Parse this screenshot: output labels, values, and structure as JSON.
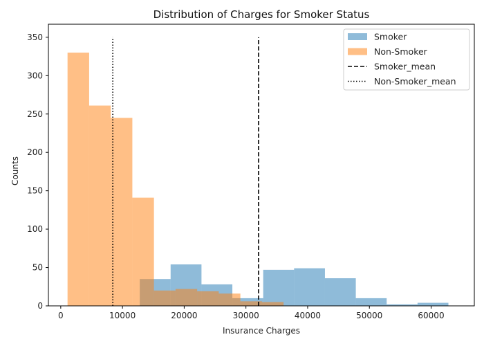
{
  "chart_data": {
    "type": "histogram",
    "title": "Distribution of Charges for Smoker Status",
    "xlabel": "Insurance Charges",
    "ylabel": "Counts",
    "xlim": [
      -2000,
      67000
    ],
    "ylim": [
      0,
      367
    ],
    "xticks": [
      0,
      10000,
      20000,
      30000,
      40000,
      50000,
      60000
    ],
    "yticks": [
      0,
      50,
      100,
      150,
      200,
      250,
      300,
      350
    ],
    "legend_position": "top-right",
    "series": [
      {
        "name": "Smoker",
        "color": "#1f77b4",
        "opacity": 0.5,
        "bins": [
          {
            "x0": 12800,
            "x1": 17800,
            "count": 35
          },
          {
            "x0": 17800,
            "x1": 22800,
            "count": 54
          },
          {
            "x0": 22800,
            "x1": 27800,
            "count": 28
          },
          {
            "x0": 27800,
            "x1": 32800,
            "count": 10
          },
          {
            "x0": 32800,
            "x1": 37800,
            "count": 47
          },
          {
            "x0": 37800,
            "x1": 42800,
            "count": 49
          },
          {
            "x0": 42800,
            "x1": 47800,
            "count": 36
          },
          {
            "x0": 47800,
            "x1": 52800,
            "count": 10
          },
          {
            "x0": 52800,
            "x1": 57800,
            "count": 2
          },
          {
            "x0": 57800,
            "x1": 62800,
            "count": 4
          }
        ]
      },
      {
        "name": "Non-Smoker",
        "color": "#ff7f0e",
        "opacity": 0.5,
        "bins": [
          {
            "x0": 1100,
            "x1": 4600,
            "count": 330
          },
          {
            "x0": 4600,
            "x1": 8100,
            "count": 261
          },
          {
            "x0": 8100,
            "x1": 11600,
            "count": 245
          },
          {
            "x0": 11600,
            "x1": 15100,
            "count": 141
          },
          {
            "x0": 15100,
            "x1": 18600,
            "count": 20
          },
          {
            "x0": 18600,
            "x1": 22100,
            "count": 22
          },
          {
            "x0": 22100,
            "x1": 25600,
            "count": 19
          },
          {
            "x0": 25600,
            "x1": 29100,
            "count": 16
          },
          {
            "x0": 29100,
            "x1": 32600,
            "count": 6
          },
          {
            "x0": 32600,
            "x1": 36100,
            "count": 5
          }
        ]
      }
    ],
    "vlines": [
      {
        "name": "Smoker_mean",
        "x": 32050,
        "y0": 0,
        "y1": 350,
        "style": "dashed",
        "color": "#000000"
      },
      {
        "name": "Non-Smoker_mean",
        "x": 8434,
        "y0": 0,
        "y1": 350,
        "style": "dotted",
        "color": "#000000"
      }
    ],
    "legend": [
      {
        "label": "Smoker",
        "kind": "patch",
        "color": "#1f77b4"
      },
      {
        "label": "Non-Smoker",
        "kind": "patch",
        "color": "#ff7f0e"
      },
      {
        "label": "Smoker_mean",
        "kind": "line",
        "style": "dashed"
      },
      {
        "label": "Non-Smoker_mean",
        "kind": "line",
        "style": "dotted"
      }
    ]
  }
}
